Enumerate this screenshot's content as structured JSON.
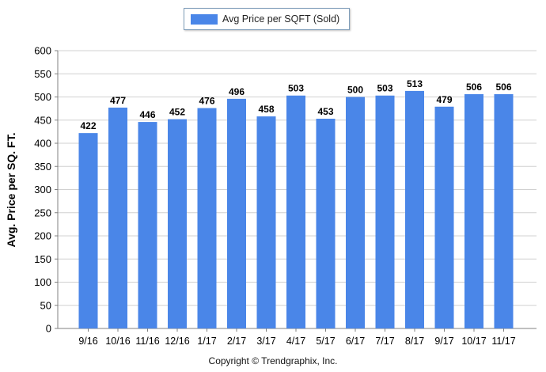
{
  "legend": {
    "label": "Avg Price per SQFT (Sold)"
  },
  "colors": {
    "bar": "#4a86e8",
    "grid": "#d0d0d0",
    "axis": "#808080"
  },
  "footer": {
    "copyright": "Copyright © Trendgraphix, Inc."
  },
  "chart_data": {
    "type": "bar",
    "title": "",
    "xlabel": "",
    "ylabel": "Avg. Price per SQ. FT.",
    "legend_position": "top-center",
    "grid": true,
    "ylim": [
      0,
      600
    ],
    "yticks": [
      0,
      50,
      100,
      150,
      200,
      250,
      300,
      350,
      400,
      450,
      500,
      550,
      600
    ],
    "categories": [
      "9/16",
      "10/16",
      "11/16",
      "12/16",
      "1/17",
      "2/17",
      "3/17",
      "4/17",
      "5/17",
      "6/17",
      "7/17",
      "8/17",
      "9/17",
      "10/17",
      "11/17"
    ],
    "series": [
      {
        "name": "Avg Price per SQFT (Sold)",
        "values": [
          422,
          477,
          446,
          452,
          476,
          496,
          458,
          503,
          453,
          500,
          503,
          513,
          479,
          506,
          506
        ]
      }
    ]
  }
}
